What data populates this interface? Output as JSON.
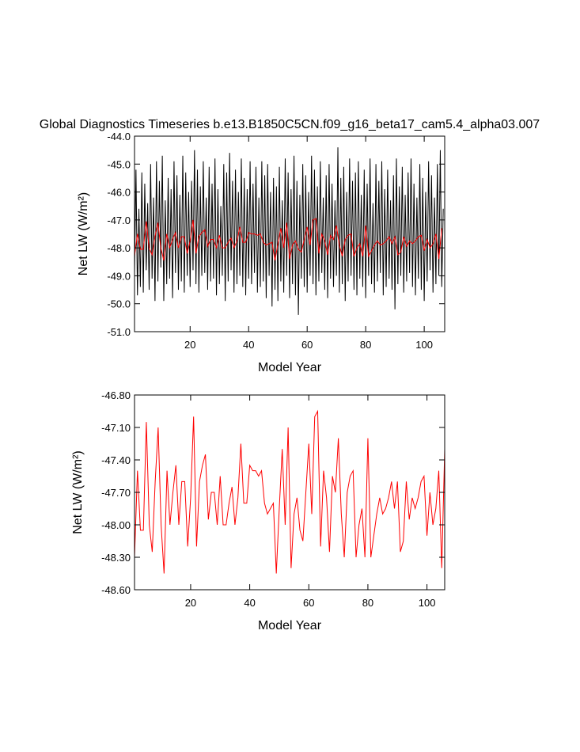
{
  "chart_data": [
    {
      "type": "line",
      "title": "Global Diagnostics Timeseries b.e13.B1850C5CN.f09_g16_beta17_cam5.4_alpha03.007",
      "x_label": "Model Year",
      "y_label": "Net LW (W/m²)",
      "xlim": [
        1,
        107
      ],
      "xticks": [
        20,
        40,
        60,
        80,
        100
      ],
      "ylim": [
        -51,
        -44
      ],
      "yticks": [
        {
          "value": -51,
          "label": "-51.0"
        },
        {
          "value": -50,
          "label": "-50.0"
        },
        {
          "value": -49,
          "label": "-49.0"
        },
        {
          "value": -48,
          "label": "-48.0"
        },
        {
          "value": -47,
          "label": "-47.0"
        },
        {
          "value": -46,
          "label": "-46.0"
        },
        {
          "value": -45,
          "label": "-45.0"
        },
        {
          "value": -44,
          "label": "-44.0"
        }
      ],
      "series": [
        {
          "color": "#000000",
          "x": [
            1,
            1.5,
            2,
            2.5,
            3,
            3.5,
            4,
            4.5,
            5,
            5.5,
            6,
            6.5,
            7,
            7.5,
            8,
            8.5,
            9,
            9.5,
            10,
            10.5,
            11,
            11.5,
            12,
            12.5,
            13,
            13.5,
            14,
            14.5,
            15,
            15.5,
            16,
            16.5,
            17,
            17.5,
            18,
            18.5,
            19,
            19.5,
            20,
            20.5,
            21,
            21.5,
            22,
            22.5,
            23,
            23.5,
            24,
            24.5,
            25,
            25.5,
            26,
            26.5,
            27,
            27.5,
            28,
            28.5,
            29,
            29.5,
            30,
            30.5,
            31,
            31.5,
            32,
            32.5,
            33,
            33.5,
            34,
            34.5,
            35,
            35.5,
            36,
            36.5,
            37,
            37.5,
            38,
            38.5,
            39,
            39.5,
            40,
            40.5,
            41,
            41.5,
            42,
            42.5,
            43,
            43.5,
            44,
            44.5,
            45,
            45.5,
            46,
            46.5,
            47,
            47.5,
            48,
            48.5,
            49,
            49.5,
            50,
            50.5,
            51,
            51.5,
            52,
            52.5,
            53,
            53.5,
            54,
            54.5,
            55,
            55.5,
            56,
            56.5,
            57,
            57.5,
            58,
            58.5,
            59,
            59.5,
            60,
            60.5,
            61,
            61.5,
            62,
            62.5,
            63,
            63.5,
            64,
            64.5,
            65,
            65.5,
            66,
            66.5,
            67,
            67.5,
            68,
            68.5,
            69,
            69.5,
            70,
            70.5,
            71,
            71.5,
            72,
            72.5,
            73,
            73.5,
            74,
            74.5,
            75,
            75.5,
            76,
            76.5,
            77,
            77.5,
            78,
            78.5,
            79,
            79.5,
            80,
            80.5,
            81,
            81.5,
            82,
            82.5,
            83,
            83.5,
            84,
            84.5,
            85,
            85.5,
            86,
            86.5,
            87,
            87.5,
            88,
            88.5,
            89,
            89.5,
            90,
            90.5,
            91,
            91.5,
            92,
            92.5,
            93,
            93.5,
            94,
            94.5,
            95,
            95.5,
            96,
            96.5,
            97,
            97.5,
            98,
            98.5,
            99,
            99.5,
            100,
            100.5,
            101,
            101.5,
            102,
            102.5,
            103,
            103.5,
            104,
            104.5,
            105,
            105.5,
            106,
            106.5
          ],
          "values": [
            -48.9,
            -45.2,
            -49.7,
            -46.6,
            -49.4,
            -45.3,
            -49.6,
            -45.7,
            -48.8,
            -46.4,
            -49.5,
            -45.0,
            -49.1,
            -46.2,
            -49.9,
            -44.9,
            -49.2,
            -45.6,
            -48.7,
            -44.7,
            -49.9,
            -46.3,
            -49.3,
            -45.5,
            -49.1,
            -45.9,
            -49.8,
            -44.9,
            -48.9,
            -45.4,
            -49.5,
            -46.1,
            -49.2,
            -44.7,
            -49.6,
            -45.3,
            -49.0,
            -46.0,
            -49.4,
            -45.6,
            -48.8,
            -44.5,
            -49.3,
            -45.2,
            -49.6,
            -45.8,
            -49.0,
            -44.9,
            -48.9,
            -46.2,
            -49.5,
            -45.1,
            -49.2,
            -45.7,
            -49.1,
            -44.8,
            -49.7,
            -45.9,
            -49.3,
            -46.5,
            -49.0,
            -45.0,
            -49.9,
            -45.3,
            -49.2,
            -44.6,
            -48.8,
            -45.6,
            -49.6,
            -45.2,
            -49.3,
            -46.0,
            -49.0,
            -44.8,
            -49.4,
            -45.5,
            -49.7,
            -45.9,
            -49.1,
            -44.9,
            -49.3,
            -45.7,
            -48.9,
            -45.1,
            -49.6,
            -46.2,
            -49.4,
            -44.9,
            -49.2,
            -45.4,
            -49.8,
            -45.0,
            -49.0,
            -46.0,
            -50.1,
            -45.5,
            -49.5,
            -45.8,
            -49.9,
            -45.1,
            -49.2,
            -46.3,
            -49.6,
            -44.8,
            -49.0,
            -45.3,
            -49.8,
            -45.9,
            -49.3,
            -44.7,
            -49.7,
            -45.6,
            -50.4,
            -46.1,
            -49.1,
            -45.0,
            -49.4,
            -45.4,
            -49.6,
            -46.0,
            -49.0,
            -44.7,
            -49.3,
            -45.2,
            -49.7,
            -45.8,
            -49.2,
            -44.9,
            -48.9,
            -46.2,
            -49.5,
            -45.4,
            -49.8,
            -45.0,
            -49.1,
            -45.7,
            -49.4,
            -46.3,
            -49.0,
            -44.4,
            -49.6,
            -45.5,
            -49.3,
            -45.1,
            -49.9,
            -46.0,
            -49.2,
            -44.8,
            -49.0,
            -45.6,
            -49.5,
            -45.3,
            -49.7,
            -44.9,
            -49.1,
            -46.1,
            -49.4,
            -45.2,
            -49.8,
            -45.7,
            -49.0,
            -44.8,
            -49.3,
            -46.4,
            -49.6,
            -45.0,
            -49.2,
            -45.6,
            -48.9,
            -44.9,
            -49.7,
            -45.9,
            -49.4,
            -45.2,
            -49.1,
            -46.3,
            -49.5,
            -45.4,
            -50.2,
            -44.8,
            -49.3,
            -45.8,
            -49.0,
            -45.1,
            -49.6,
            -46.1,
            -49.2,
            -45.3,
            -48.9,
            -44.8,
            -49.4,
            -45.7,
            -49.7,
            -46.2,
            -49.1,
            -45.0,
            -49.5,
            -45.5,
            -49.9,
            -46.0,
            -49.2,
            -44.9,
            -48.8,
            -45.4,
            -49.6,
            -46.2,
            -49.3,
            -45.0,
            -49.0,
            -44.5,
            -49.4,
            -46.6
          ]
        },
        {
          "color": "#ff0000",
          "x": [
            1,
            2,
            3,
            4,
            5,
            6,
            7,
            8,
            9,
            10,
            11,
            12,
            13,
            14,
            15,
            16,
            17,
            18,
            19,
            20,
            21,
            22,
            23,
            24,
            25,
            26,
            27,
            28,
            29,
            30,
            31,
            32,
            33,
            34,
            35,
            36,
            37,
            38,
            39,
            40,
            41,
            42,
            43,
            44,
            45,
            46,
            47,
            48,
            49,
            50,
            51,
            52,
            53,
            54,
            55,
            56,
            57,
            58,
            59,
            60,
            61,
            62,
            63,
            64,
            65,
            66,
            67,
            68,
            69,
            70,
            71,
            72,
            73,
            74,
            75,
            76,
            77,
            78,
            79,
            80,
            81,
            82,
            83,
            84,
            85,
            86,
            87,
            88,
            89,
            90,
            91,
            92,
            93,
            94,
            95,
            96,
            97,
            98,
            99,
            100,
            101,
            102,
            103,
            104,
            105,
            106
          ],
          "values": [
            -48.3,
            -47.5,
            -48.05,
            -48.05,
            -47.05,
            -48.0,
            -48.25,
            -47.6,
            -47.1,
            -48.0,
            -48.45,
            -47.5,
            -48.0,
            -47.7,
            -47.45,
            -48.0,
            -47.6,
            -47.6,
            -48.2,
            -47.75,
            -47.0,
            -48.2,
            -47.6,
            -47.45,
            -47.35,
            -47.95,
            -47.7,
            -47.7,
            -48.0,
            -47.55,
            -48.0,
            -48.0,
            -47.8,
            -47.65,
            -48.0,
            -47.75,
            -47.25,
            -47.8,
            -47.8,
            -47.45,
            -47.5,
            -47.5,
            -47.55,
            -47.5,
            -47.8,
            -47.9,
            -47.85,
            -47.8,
            -48.45,
            -47.85,
            -47.3,
            -48.0,
            -47.1,
            -48.4,
            -47.9,
            -47.75,
            -48.05,
            -48.15,
            -47.7,
            -47.25,
            -47.9,
            -47.0,
            -46.95,
            -48.2,
            -47.5,
            -47.75,
            -48.25,
            -47.55,
            -47.7,
            -47.2,
            -47.9,
            -48.3,
            -47.7,
            -47.55,
            -47.5,
            -48.3,
            -48.0,
            -47.85,
            -48.3,
            -47.2,
            -48.3,
            -48.1,
            -47.9,
            -47.75,
            -47.9,
            -47.85,
            -47.75,
            -47.6,
            -47.85,
            -47.6,
            -48.25,
            -48.15,
            -47.6,
            -47.95,
            -47.75,
            -47.85,
            -47.75,
            -47.6,
            -47.55,
            -48.1,
            -47.7,
            -48.0,
            -47.85,
            -47.5,
            -48.4,
            -47.3
          ]
        }
      ]
    },
    {
      "type": "line",
      "x_label": "Model Year",
      "y_label": "Net LW (W/m²)",
      "xlim": [
        1,
        106
      ],
      "xticks": [
        20,
        40,
        60,
        80,
        100
      ],
      "ylim": [
        -48.6,
        -46.8
      ],
      "yticks": [
        {
          "value": -48.6,
          "label": "-48.60"
        },
        {
          "value": -48.3,
          "label": "-48.30"
        },
        {
          "value": -48.0,
          "label": "-48.00"
        },
        {
          "value": -47.7,
          "label": "-47.70"
        },
        {
          "value": -47.4,
          "label": "-47.40"
        },
        {
          "value": -47.1,
          "label": "-47.10"
        },
        {
          "value": -46.8,
          "label": "-46.80"
        }
      ],
      "series": [
        {
          "color": "#ff0000",
          "x": [
            1,
            2,
            3,
            4,
            5,
            6,
            7,
            8,
            9,
            10,
            11,
            12,
            13,
            14,
            15,
            16,
            17,
            18,
            19,
            20,
            21,
            22,
            23,
            24,
            25,
            26,
            27,
            28,
            29,
            30,
            31,
            32,
            33,
            34,
            35,
            36,
            37,
            38,
            39,
            40,
            41,
            42,
            43,
            44,
            45,
            46,
            47,
            48,
            49,
            50,
            51,
            52,
            53,
            54,
            55,
            56,
            57,
            58,
            59,
            60,
            61,
            62,
            63,
            64,
            65,
            66,
            67,
            68,
            69,
            70,
            71,
            72,
            73,
            74,
            75,
            76,
            77,
            78,
            79,
            80,
            81,
            82,
            83,
            84,
            85,
            86,
            87,
            88,
            89,
            90,
            91,
            92,
            93,
            94,
            95,
            96,
            97,
            98,
            99,
            100,
            101,
            102,
            103,
            104,
            105,
            106
          ],
          "values": [
            -48.3,
            -47.5,
            -48.05,
            -48.05,
            -47.05,
            -48.0,
            -48.25,
            -47.6,
            -47.1,
            -48.0,
            -48.45,
            -47.5,
            -48.0,
            -47.7,
            -47.45,
            -48.0,
            -47.6,
            -47.6,
            -48.2,
            -47.75,
            -47.0,
            -48.2,
            -47.6,
            -47.45,
            -47.35,
            -47.95,
            -47.7,
            -47.7,
            -48.0,
            -47.55,
            -48.0,
            -48.0,
            -47.8,
            -47.65,
            -48.0,
            -47.75,
            -47.25,
            -47.8,
            -47.8,
            -47.45,
            -47.5,
            -47.5,
            -47.55,
            -47.5,
            -47.8,
            -47.9,
            -47.85,
            -47.8,
            -48.45,
            -47.85,
            -47.3,
            -48.0,
            -47.1,
            -48.4,
            -47.9,
            -47.75,
            -48.05,
            -48.15,
            -47.7,
            -47.25,
            -47.9,
            -47.0,
            -46.95,
            -48.2,
            -47.5,
            -47.75,
            -48.25,
            -47.55,
            -47.7,
            -47.2,
            -47.9,
            -48.3,
            -47.7,
            -47.55,
            -47.5,
            -48.3,
            -48.0,
            -47.85,
            -48.3,
            -47.2,
            -48.3,
            -48.1,
            -47.9,
            -47.75,
            -47.9,
            -47.85,
            -47.75,
            -47.6,
            -47.85,
            -47.6,
            -48.25,
            -48.15,
            -47.6,
            -47.95,
            -47.75,
            -47.85,
            -47.75,
            -47.6,
            -47.55,
            -48.1,
            -47.7,
            -48.0,
            -47.85,
            -47.5,
            -48.4,
            -47.3
          ]
        }
      ]
    }
  ]
}
